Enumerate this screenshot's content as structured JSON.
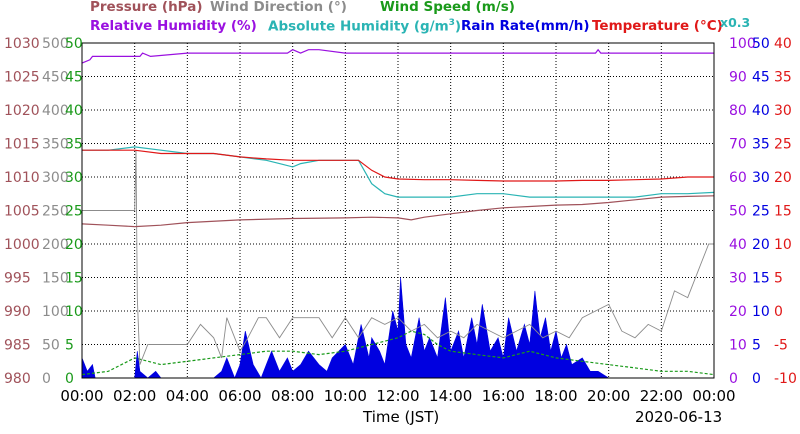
{
  "colors": {
    "pressure": "#a0525a",
    "wind_direction": "#8c8c8c",
    "wind_speed": "#1a9a1a",
    "relative_humidity": "#9a10e0",
    "absolute_humidity": "#2ab4b4",
    "rain_rate": "#0000e0",
    "temperature": "#e01818"
  },
  "legend": {
    "pressure": "Pressure (hPa)",
    "wind_direction": "Wind Direction (°)",
    "wind_speed": "Wind Speed (m/s)",
    "relative_humidity": "Relative Humidity (%)",
    "absolute_humidity": "Absolute Humidity (g/m",
    "absolute_humidity_sup": "3",
    "absolute_humidity_end": ")",
    "absolute_humidity_factor": "x0.3",
    "rain_rate": "Rain Rate(mm/h)",
    "temperature": "Temperature (°C)"
  },
  "footer": {
    "xlabel": "Time (JST)",
    "date": "2020-06-13"
  },
  "chart_data": {
    "type": "line",
    "xlabel": "Time (JST)",
    "date": "2020-06-13",
    "x_ticks": [
      "00:00",
      "02:00",
      "04:00",
      "06:00",
      "08:00",
      "10:00",
      "12:00",
      "14:00",
      "16:00",
      "18:00",
      "20:00",
      "22:00",
      "00:00"
    ],
    "xlim": [
      0,
      24
    ],
    "grid": true,
    "axes": {
      "pressure": {
        "ticks": [
          "1030",
          "1025",
          "1020",
          "1015",
          "1010",
          "1005",
          "1000",
          "995",
          "990",
          "985",
          "980"
        ],
        "ylim": [
          980,
          1030
        ]
      },
      "wind_direction": {
        "ticks": [
          "500",
          "450",
          "400",
          "350",
          "300",
          "250",
          "200",
          "150",
          "100",
          "50",
          "0"
        ],
        "ylim": [
          0,
          500
        ]
      },
      "wind_speed": {
        "ticks": [
          "50",
          "45",
          "40",
          "35",
          "30",
          "25",
          "20",
          "15",
          "10",
          "5",
          "0"
        ],
        "ylim": [
          0,
          50
        ]
      },
      "relative_humidity": {
        "ticks": [
          "100",
          "90",
          "80",
          "70",
          "60",
          "50",
          "40",
          "30",
          "20",
          "10",
          "0"
        ],
        "ylim": [
          0,
          100
        ]
      },
      "rain_rate": {
        "ticks": [
          "50",
          "45",
          "40",
          "35",
          "30",
          "25",
          "20",
          "15",
          "10",
          "5",
          "0"
        ],
        "ylim": [
          0,
          50
        ]
      },
      "temperature": {
        "ticks": [
          "40",
          "35",
          "30",
          "25",
          "20",
          "15",
          "10",
          "5",
          "0",
          "-5",
          "-10"
        ],
        "ylim": [
          -10,
          40
        ]
      }
    },
    "series": [
      {
        "name": "Relative Humidity (%)",
        "axis": "relative_humidity",
        "x": [
          0,
          0.3,
          0.4,
          2.2,
          2.3,
          2.6,
          4,
          6,
          7.8,
          8,
          8.3,
          8.6,
          9,
          10,
          12,
          16,
          18,
          19.5,
          19.6,
          19.7,
          20,
          22,
          24
        ],
        "y": [
          94,
          95,
          96,
          96,
          97,
          96,
          97,
          97,
          97,
          98,
          97,
          98,
          98,
          97,
          97,
          97,
          97,
          97,
          98,
          97,
          97,
          97,
          97
        ]
      },
      {
        "name": "Temperature (°C)",
        "axis": "temperature",
        "x": [
          0,
          1,
          2,
          3,
          4,
          5,
          6,
          7,
          8,
          9,
          10,
          10.5,
          11,
          11.5,
          12,
          13,
          14,
          15,
          16,
          17,
          18,
          19,
          20,
          21,
          22,
          23,
          24
        ],
        "y": [
          24,
          24,
          24,
          23.5,
          23.5,
          23.5,
          23,
          22.7,
          22.5,
          22.5,
          22.5,
          22.5,
          21,
          20,
          19.7,
          19.6,
          19.6,
          19.5,
          19.4,
          19.4,
          19.4,
          19.5,
          19.5,
          19.6,
          19.7,
          20,
          20
        ]
      },
      {
        "name": "Absolute Humidity x0.3",
        "axis": "wind_speed",
        "x": [
          0,
          1,
          2,
          3,
          4,
          5,
          6,
          7,
          7.5,
          8,
          8.3,
          9,
          10,
          10.5,
          11,
          11.5,
          12,
          13,
          14,
          15,
          16,
          17,
          18,
          19,
          20,
          21,
          22,
          23,
          24
        ],
        "y": [
          34,
          34,
          34.5,
          34,
          33.5,
          33.5,
          33,
          32.5,
          32,
          31.5,
          32,
          32.5,
          32.5,
          32.5,
          29,
          27.5,
          27,
          27,
          27,
          27.5,
          27.5,
          27,
          27,
          27,
          27,
          27,
          27.5,
          27.5,
          27.7
        ]
      },
      {
        "name": "Pressure (hPa)",
        "axis": "pressure",
        "x": [
          0,
          1,
          2,
          3,
          4,
          6,
          8,
          10,
          11,
          12,
          12.5,
          13,
          14,
          15,
          16,
          17,
          18,
          19,
          20,
          21,
          22,
          23,
          24
        ],
        "y": [
          1003,
          1002.8,
          1002.6,
          1002.8,
          1003.2,
          1003.6,
          1003.8,
          1003.9,
          1004,
          1003.9,
          1003.6,
          1004,
          1004.5,
          1005,
          1005.4,
          1005.6,
          1005.8,
          1005.9,
          1006.2,
          1006.6,
          1007,
          1007.1,
          1007.2
        ]
      },
      {
        "name": "Wind Direction (°)",
        "axis": "wind_direction",
        "x": [
          0,
          1,
          1.5,
          1.55,
          2,
          2.05,
          2.1,
          2.2,
          2.5,
          3,
          3.5,
          4,
          4.5,
          5,
          5.3,
          5.5,
          6,
          6.3,
          6.7,
          7,
          7.5,
          8,
          8.5,
          9,
          9.5,
          10,
          10.5,
          11,
          11.5,
          12,
          12.5,
          13,
          13.5,
          14,
          14.5,
          15,
          15.5,
          16,
          16.5,
          17,
          17.5,
          18,
          18.5,
          19,
          19.5,
          20,
          20.5,
          21,
          21.5,
          22,
          22.5,
          23,
          23.5,
          23.8,
          24
        ],
        "y": [
          250,
          250,
          250,
          250,
          250,
          340,
          120,
          20,
          50,
          50,
          50,
          50,
          80,
          60,
          30,
          90,
          40,
          60,
          90,
          90,
          60,
          90,
          90,
          90,
          60,
          90,
          60,
          90,
          80,
          90,
          70,
          80,
          60,
          70,
          60,
          80,
          70,
          60,
          70,
          80,
          60,
          70,
          60,
          90,
          100,
          110,
          70,
          60,
          80,
          70,
          130,
          120,
          170,
          200,
          200
        ]
      },
      {
        "name": "Wind Speed (m/s)",
        "axis": "wind_speed",
        "x": [
          0,
          1,
          2,
          3,
          4,
          5,
          6,
          7,
          8,
          9,
          10,
          11,
          12,
          12.5,
          13,
          13.5,
          14,
          15,
          16,
          17,
          18,
          19,
          20,
          21,
          22,
          23,
          24
        ],
        "y": [
          0.5,
          1,
          3,
          2,
          2.5,
          3,
          3.5,
          4,
          4,
          3.5,
          4,
          5,
          6,
          7,
          6.5,
          5,
          4,
          3.5,
          3,
          4,
          3,
          2.5,
          2,
          1.5,
          1,
          1,
          0.5
        ]
      },
      {
        "name": "Rain Rate(mm/h)",
        "axis": "rain_rate",
        "x": [
          0,
          0.2,
          0.4,
          0.5,
          1,
          1.5,
          2,
          2.1,
          2.2,
          2.5,
          2.8,
          3,
          4,
          5,
          5.3,
          5.5,
          5.8,
          6,
          6.2,
          6.5,
          6.8,
          7,
          7.2,
          7.5,
          7.8,
          8,
          8.3,
          8.6,
          9,
          9.3,
          9.5,
          10,
          10.3,
          10.6,
          10.9,
          11,
          11.3,
          11.5,
          11.8,
          12,
          12.1,
          12.3,
          12.5,
          12.8,
          13,
          13.2,
          13.5,
          13.8,
          14,
          14.3,
          14.5,
          14.8,
          15,
          15.2,
          15.5,
          15.8,
          16,
          16.2,
          16.5,
          16.8,
          17,
          17.2,
          17.4,
          17.6,
          17.8,
          18,
          18.2,
          18.4,
          18.6,
          19,
          19.3,
          19.6,
          20,
          21,
          22,
          23,
          24
        ],
        "y": [
          3,
          1,
          2,
          0,
          0,
          0,
          0,
          4,
          1,
          0,
          1,
          0,
          0,
          0,
          1,
          3,
          0,
          2,
          7,
          2,
          0,
          2,
          4,
          1,
          3,
          1,
          2,
          4,
          2,
          1,
          3,
          5,
          2,
          8,
          3,
          6,
          4,
          2,
          10,
          7,
          15,
          5,
          3,
          9,
          4,
          6,
          3,
          12,
          4,
          7,
          3,
          9,
          5,
          11,
          4,
          6,
          3,
          9,
          4,
          8,
          5,
          13,
          6,
          9,
          4,
          7,
          3,
          5,
          2,
          3,
          1,
          1,
          0,
          0,
          0,
          0,
          0
        ]
      }
    ]
  }
}
